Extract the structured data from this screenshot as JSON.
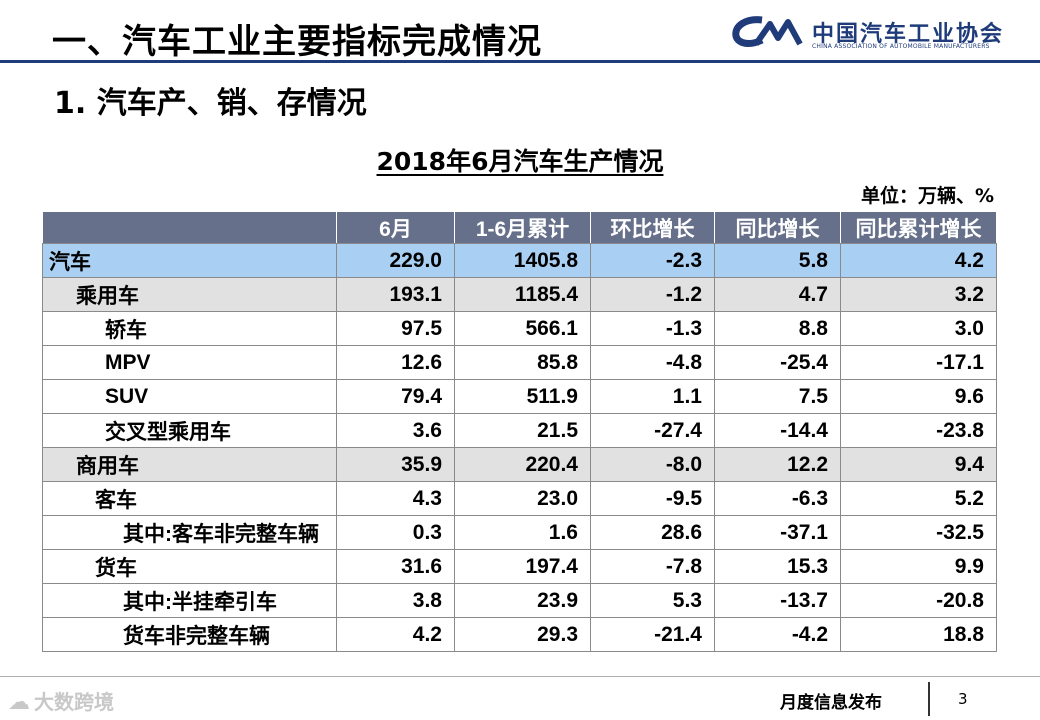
{
  "header": {
    "section_title": "一、汽车工业主要指标完成情况",
    "subsection_title": "1. 汽车产、销、存情况",
    "logo_cn": "中国汽车工业协会",
    "logo_en": "CHINA ASSOCIATION OF AUTOMOBILE MANUFACTURERS",
    "logo_mark_icon": "caam-logo-icon",
    "brand_color": "#1f3b7a"
  },
  "table": {
    "title": "2018年6月汽车生产情况",
    "unit": "单位：万辆、%",
    "header_color": "#66708a",
    "columns": [
      "",
      "6月",
      "1-6月累计",
      "环比增长",
      "同比增长",
      "同比累计增长"
    ],
    "rows": [
      {
        "name": "汽车",
        "level": 0,
        "values": [
          "229.0",
          "1405.8",
          "-2.3",
          "5.8",
          "4.2"
        ]
      },
      {
        "name": "乘用车",
        "level": 1,
        "values": [
          "193.1",
          "1185.4",
          "-1.2",
          "4.7",
          "3.2"
        ]
      },
      {
        "name": "轿车",
        "level": 2,
        "values": [
          "97.5",
          "566.1",
          "-1.3",
          "8.8",
          "3.0"
        ]
      },
      {
        "name": "MPV",
        "level": 2,
        "values": [
          "12.6",
          "85.8",
          "-4.8",
          "-25.4",
          "-17.1"
        ]
      },
      {
        "name": "SUV",
        "level": 2,
        "values": [
          "79.4",
          "511.9",
          "1.1",
          "7.5",
          "9.6"
        ]
      },
      {
        "name": "交叉型乘用车",
        "level": 2,
        "values": [
          "3.6",
          "21.5",
          "-27.4",
          "-14.4",
          "-23.8"
        ]
      },
      {
        "name": "商用车",
        "level": 1,
        "values": [
          "35.9",
          "220.4",
          "-8.0",
          "12.2",
          "9.4"
        ]
      },
      {
        "name": "客车",
        "level": "sub",
        "values": [
          "4.3",
          "23.0",
          "-9.5",
          "-6.3",
          "5.2"
        ]
      },
      {
        "name": "其中:客车非完整车辆",
        "level": 3,
        "values": [
          "0.3",
          "1.6",
          "28.6",
          "-37.1",
          "-32.5"
        ]
      },
      {
        "name": "货车",
        "level": "sub",
        "values": [
          "31.6",
          "197.4",
          "-7.8",
          "15.3",
          "9.9"
        ]
      },
      {
        "name": "其中:半挂牵引车",
        "level": 3,
        "values": [
          "3.8",
          "23.9",
          "5.3",
          "-13.7",
          "-20.8"
        ]
      },
      {
        "name": "货车非完整车辆",
        "level": 3,
        "values": [
          "4.2",
          "29.3",
          "-21.4",
          "-4.2",
          "18.8"
        ]
      }
    ]
  },
  "footer": {
    "watermark": "大数跨境",
    "watermark_icon": "cloud-icon",
    "label": "月度信息发布",
    "page": "3"
  }
}
